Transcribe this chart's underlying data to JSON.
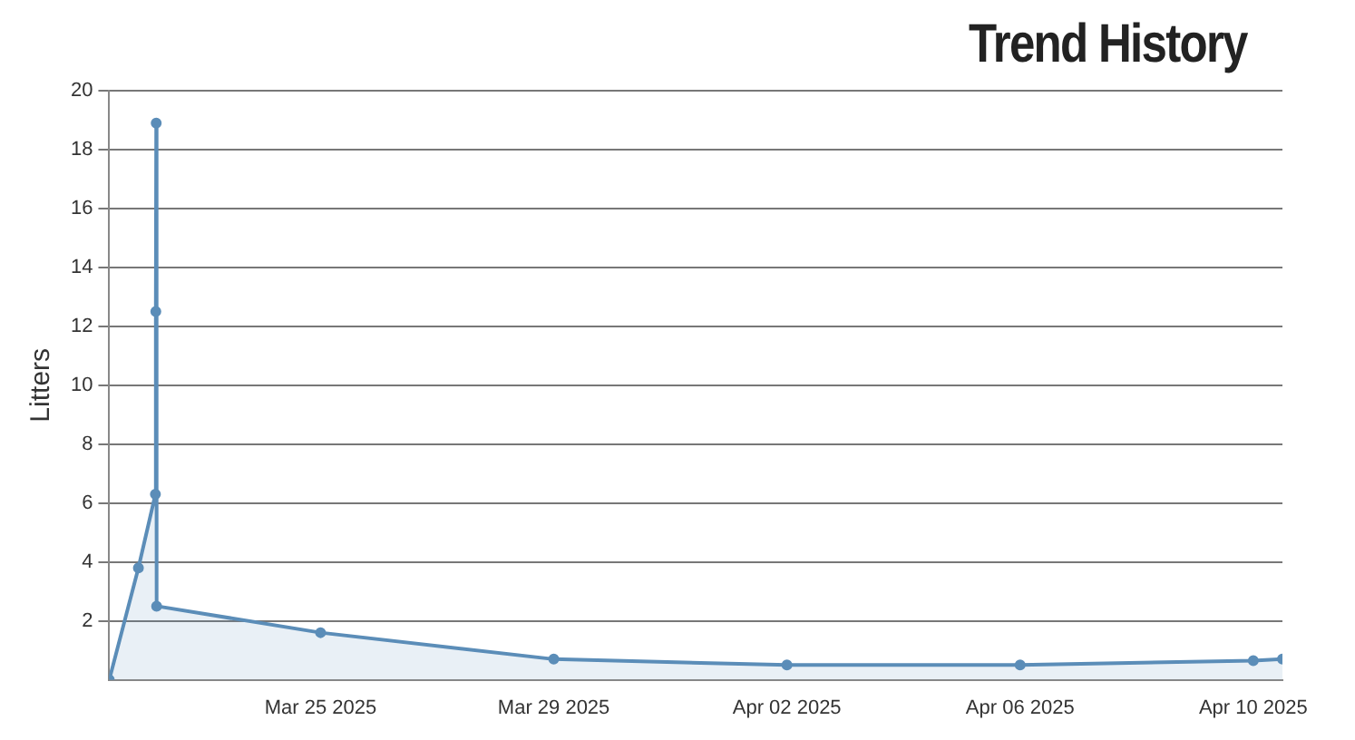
{
  "chart_data": {
    "type": "area",
    "title": "Trend History",
    "ylabel": "Litters",
    "x": [
      "2025-03-21T09:00",
      "2025-03-21T21:00",
      "2025-03-22T04:00",
      "2025-03-22T04:10",
      "2025-03-22T04:20",
      "2025-03-22T04:30",
      "2025-03-25",
      "2025-03-29",
      "2025-04-02",
      "2025-04-06",
      "2025-04-10",
      "2025-04-10T12:00"
    ],
    "series": [
      {
        "color": "#5b8db8",
        "values": [
          0,
          3.8,
          6.3,
          12.5,
          18.9,
          2.5,
          1.6,
          0.7,
          0.5,
          0.5,
          0.65,
          0.7
        ]
      }
    ],
    "xlim": [
      "2025-03-21T09:00",
      "2025-04-10T12:00"
    ],
    "xticks": [
      {
        "value": "2025-03-25",
        "label": "Mar 25 2025"
      },
      {
        "value": "2025-03-29",
        "label": "Mar 29 2025"
      },
      {
        "value": "2025-04-02",
        "label": "Apr 02 2025"
      },
      {
        "value": "2025-04-06",
        "label": "Apr 06 2025"
      },
      {
        "value": "2025-04-10",
        "label": "Apr 10 2025"
      }
    ],
    "ylim": [
      0,
      20
    ],
    "yticks": [
      2,
      4,
      6,
      8,
      10,
      12,
      14,
      16,
      18,
      20
    ],
    "grid": "y",
    "marker": "circle",
    "legend": false
  }
}
